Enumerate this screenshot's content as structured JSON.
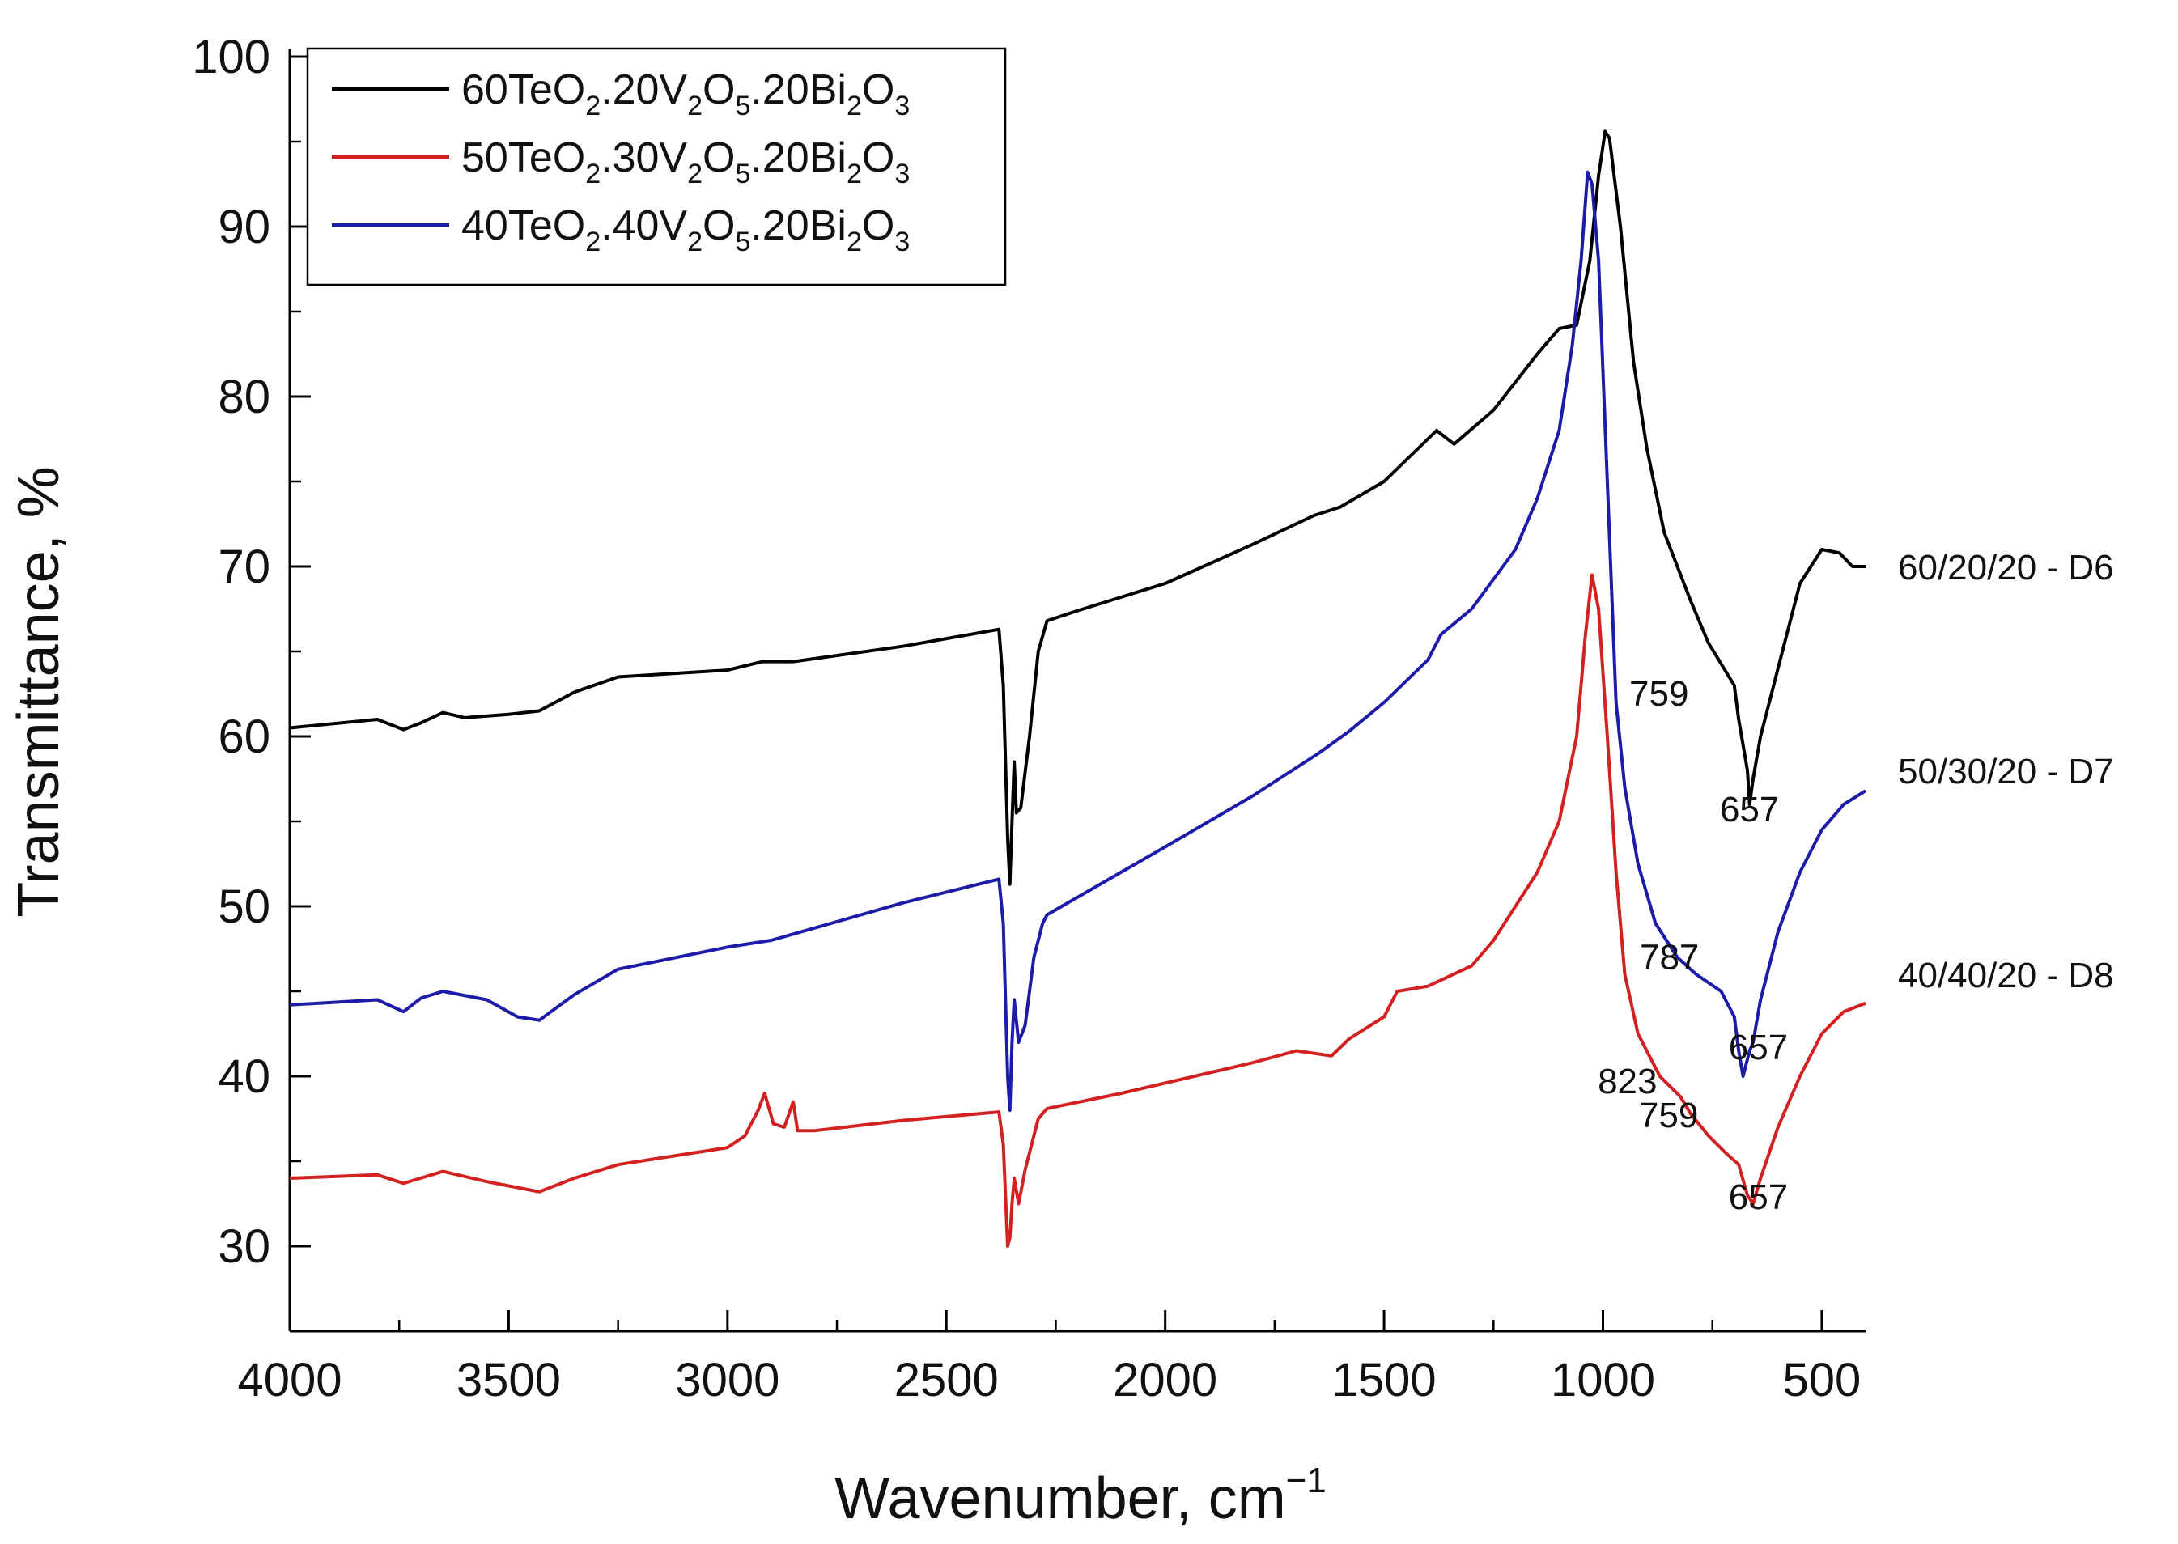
{
  "chart_data": {
    "type": "line",
    "title": "",
    "xlabel": "Wavenumber, cm",
    "xlabel_sup": "−1",
    "ylabel": "Transmittance, %",
    "xlim": [
      4000,
      400
    ],
    "ylim": [
      25,
      100
    ],
    "x_ticks": [
      4000,
      3500,
      3000,
      2500,
      2000,
      1500,
      1000,
      500
    ],
    "x_tick_labels": [
      "4000",
      "3500",
      "3000",
      "2500",
      "2000",
      "1500",
      "1000",
      "500"
    ],
    "y_ticks": [
      30,
      40,
      50,
      60,
      70,
      80,
      90,
      100
    ],
    "y_tick_labels": [
      "30",
      "40",
      "50",
      "60",
      "70",
      "80",
      "90",
      "100"
    ],
    "grid": false,
    "legend_position": "top-left",
    "series": [
      {
        "name": "60TeO2.20V2O5.20Bi2O3",
        "legend_parts": [
          {
            "t": "60TeO",
            "sub": false
          },
          {
            "t": "2",
            "sub": true
          },
          {
            "t": ".20V",
            "sub": false
          },
          {
            "t": "2",
            "sub": true
          },
          {
            "t": "O",
            "sub": false
          },
          {
            "t": "5",
            "sub": true
          },
          {
            "t": ".20Bi",
            "sub": false
          },
          {
            "t": "2",
            "sub": true
          },
          {
            "t": "O",
            "sub": false
          },
          {
            "t": "3",
            "sub": true
          }
        ],
        "side_label": "60/20/20 - D6",
        "side_label_y": 70,
        "color": "#000000",
        "points": [
          [
            4000,
            60.5
          ],
          [
            3800,
            61.0
          ],
          [
            3740,
            60.4
          ],
          [
            3700,
            60.8
          ],
          [
            3650,
            61.4
          ],
          [
            3600,
            61.1
          ],
          [
            3500,
            61.3
          ],
          [
            3430,
            61.5
          ],
          [
            3350,
            62.6
          ],
          [
            3250,
            63.5
          ],
          [
            3000,
            63.9
          ],
          [
            2920,
            64.4
          ],
          [
            2850,
            64.4
          ],
          [
            2600,
            65.3
          ],
          [
            2380,
            66.3
          ],
          [
            2370,
            63.0
          ],
          [
            2360,
            54.0
          ],
          [
            2355,
            51.3
          ],
          [
            2350,
            55.0
          ],
          [
            2345,
            58.5
          ],
          [
            2340,
            55.5
          ],
          [
            2330,
            55.8
          ],
          [
            2310,
            60.0
          ],
          [
            2290,
            65.0
          ],
          [
            2270,
            66.8
          ],
          [
            2200,
            67.4
          ],
          [
            2000,
            69.0
          ],
          [
            1800,
            71.3
          ],
          [
            1660,
            73.0
          ],
          [
            1600,
            73.5
          ],
          [
            1500,
            75.0
          ],
          [
            1420,
            77.0
          ],
          [
            1380,
            78.0
          ],
          [
            1340,
            77.2
          ],
          [
            1250,
            79.2
          ],
          [
            1150,
            82.5
          ],
          [
            1100,
            84.0
          ],
          [
            1060,
            84.2
          ],
          [
            1030,
            88.0
          ],
          [
            1010,
            93.0
          ],
          [
            995,
            95.6
          ],
          [
            985,
            95.2
          ],
          [
            960,
            90.0
          ],
          [
            930,
            82.0
          ],
          [
            900,
            77.0
          ],
          [
            860,
            72.0
          ],
          [
            800,
            68.0
          ],
          [
            759,
            65.5
          ],
          [
            700,
            63.0
          ],
          [
            690,
            61.0
          ],
          [
            670,
            58.0
          ],
          [
            665,
            56.0
          ],
          [
            657,
            57.5
          ],
          [
            640,
            60.0
          ],
          [
            600,
            64.0
          ],
          [
            550,
            69.0
          ],
          [
            500,
            71.0
          ],
          [
            460,
            70.8
          ],
          [
            430,
            70.0
          ],
          [
            400,
            70.0
          ]
        ]
      },
      {
        "name": "50TeO2.30V2O5.20Bi2O3",
        "legend_parts": [
          {
            "t": "50TeO",
            "sub": false
          },
          {
            "t": "2",
            "sub": true
          },
          {
            "t": ".30V",
            "sub": false
          },
          {
            "t": "2",
            "sub": true
          },
          {
            "t": "O",
            "sub": false
          },
          {
            "t": "5",
            "sub": true
          },
          {
            "t": ".20Bi",
            "sub": false
          },
          {
            "t": "2",
            "sub": true
          },
          {
            "t": "O",
            "sub": false
          },
          {
            "t": "3",
            "sub": true
          }
        ],
        "side_label": "50/30/20 - D7",
        "side_label_y": 58,
        "color": "#d32020",
        "points": [
          [
            4000,
            34.0
          ],
          [
            3800,
            34.2
          ],
          [
            3740,
            33.7
          ],
          [
            3650,
            34.4
          ],
          [
            3550,
            33.8
          ],
          [
            3430,
            33.2
          ],
          [
            3350,
            34.0
          ],
          [
            3250,
            34.8
          ],
          [
            3000,
            35.8
          ],
          [
            2960,
            36.5
          ],
          [
            2930,
            38.0
          ],
          [
            2915,
            39.0
          ],
          [
            2895,
            37.2
          ],
          [
            2870,
            37.0
          ],
          [
            2850,
            38.5
          ],
          [
            2840,
            36.8
          ],
          [
            2800,
            36.8
          ],
          [
            2600,
            37.4
          ],
          [
            2380,
            37.9
          ],
          [
            2370,
            36.0
          ],
          [
            2360,
            30.0
          ],
          [
            2355,
            30.5
          ],
          [
            2350,
            32.5
          ],
          [
            2345,
            34.0
          ],
          [
            2335,
            32.5
          ],
          [
            2320,
            34.5
          ],
          [
            2290,
            37.5
          ],
          [
            2270,
            38.1
          ],
          [
            2100,
            39.0
          ],
          [
            1800,
            40.8
          ],
          [
            1700,
            41.5
          ],
          [
            1620,
            41.2
          ],
          [
            1580,
            42.2
          ],
          [
            1500,
            43.5
          ],
          [
            1470,
            45.0
          ],
          [
            1400,
            45.3
          ],
          [
            1300,
            46.5
          ],
          [
            1250,
            48.0
          ],
          [
            1150,
            52.0
          ],
          [
            1100,
            55.0
          ],
          [
            1060,
            60.0
          ],
          [
            1040,
            66.0
          ],
          [
            1025,
            69.5
          ],
          [
            1010,
            67.5
          ],
          [
            990,
            60.0
          ],
          [
            970,
            52.0
          ],
          [
            950,
            46.0
          ],
          [
            920,
            42.5
          ],
          [
            870,
            40.0
          ],
          [
            823,
            38.8
          ],
          [
            800,
            37.8
          ],
          [
            759,
            36.5
          ],
          [
            720,
            35.5
          ],
          [
            690,
            34.8
          ],
          [
            670,
            33.0
          ],
          [
            657,
            32.5
          ],
          [
            640,
            34.0
          ],
          [
            600,
            37.0
          ],
          [
            550,
            40.0
          ],
          [
            500,
            42.5
          ],
          [
            450,
            43.8
          ],
          [
            400,
            44.3
          ]
        ]
      },
      {
        "name": "40TeO2.40V2O5.20Bi2O3",
        "legend_parts": [
          {
            "t": "40TeO",
            "sub": false
          },
          {
            "t": "2",
            "sub": true
          },
          {
            "t": ".40V",
            "sub": false
          },
          {
            "t": "2",
            "sub": true
          },
          {
            "t": "O",
            "sub": false
          },
          {
            "t": "5",
            "sub": true
          },
          {
            "t": ".20Bi",
            "sub": false
          },
          {
            "t": "2",
            "sub": true
          },
          {
            "t": "O",
            "sub": false
          },
          {
            "t": "3",
            "sub": true
          }
        ],
        "side_label": "40/40/20 - D8",
        "side_label_y": 46,
        "color": "#1c1ca8",
        "points": [
          [
            4000,
            44.2
          ],
          [
            3800,
            44.5
          ],
          [
            3740,
            43.8
          ],
          [
            3700,
            44.6
          ],
          [
            3650,
            45.0
          ],
          [
            3550,
            44.5
          ],
          [
            3480,
            43.5
          ],
          [
            3430,
            43.3
          ],
          [
            3350,
            44.8
          ],
          [
            3250,
            46.3
          ],
          [
            3000,
            47.6
          ],
          [
            2900,
            48.0
          ],
          [
            2600,
            50.2
          ],
          [
            2380,
            51.6
          ],
          [
            2370,
            49.0
          ],
          [
            2360,
            40.0
          ],
          [
            2355,
            38.0
          ],
          [
            2350,
            42.0
          ],
          [
            2345,
            44.5
          ],
          [
            2335,
            42.0
          ],
          [
            2320,
            43.0
          ],
          [
            2300,
            47.0
          ],
          [
            2280,
            49.0
          ],
          [
            2270,
            49.5
          ],
          [
            2000,
            53.5
          ],
          [
            1800,
            56.5
          ],
          [
            1650,
            59.0
          ],
          [
            1580,
            60.3
          ],
          [
            1500,
            62.0
          ],
          [
            1400,
            64.5
          ],
          [
            1370,
            66.0
          ],
          [
            1300,
            67.5
          ],
          [
            1200,
            71.0
          ],
          [
            1150,
            74.0
          ],
          [
            1100,
            78.0
          ],
          [
            1070,
            83.0
          ],
          [
            1050,
            88.0
          ],
          [
            1035,
            93.2
          ],
          [
            1025,
            92.5
          ],
          [
            1010,
            88.0
          ],
          [
            990,
            75.0
          ],
          [
            970,
            62.0
          ],
          [
            950,
            57.0
          ],
          [
            920,
            52.5
          ],
          [
            880,
            49.0
          ],
          [
            830,
            47.0
          ],
          [
            787,
            46.0
          ],
          [
            730,
            45.0
          ],
          [
            700,
            43.5
          ],
          [
            690,
            41.5
          ],
          [
            680,
            40.0
          ],
          [
            665,
            41.5
          ],
          [
            657,
            42.0
          ],
          [
            640,
            44.5
          ],
          [
            600,
            48.5
          ],
          [
            550,
            52.0
          ],
          [
            500,
            54.5
          ],
          [
            450,
            56.0
          ],
          [
            400,
            56.8
          ]
        ]
      }
    ],
    "annotations": [
      {
        "text": "759",
        "x": 872,
        "y": 61.8
      },
      {
        "text": "657",
        "x": 665,
        "y": 55.0
      },
      {
        "text": "787",
        "x": 848,
        "y": 46.3
      },
      {
        "text": "657",
        "x": 645,
        "y": 41.0
      },
      {
        "text": "823",
        "x": 944,
        "y": 39.0
      },
      {
        "text": "759",
        "x": 850,
        "y": 37.0
      },
      {
        "text": "657",
        "x": 645,
        "y": 32.2
      }
    ]
  }
}
